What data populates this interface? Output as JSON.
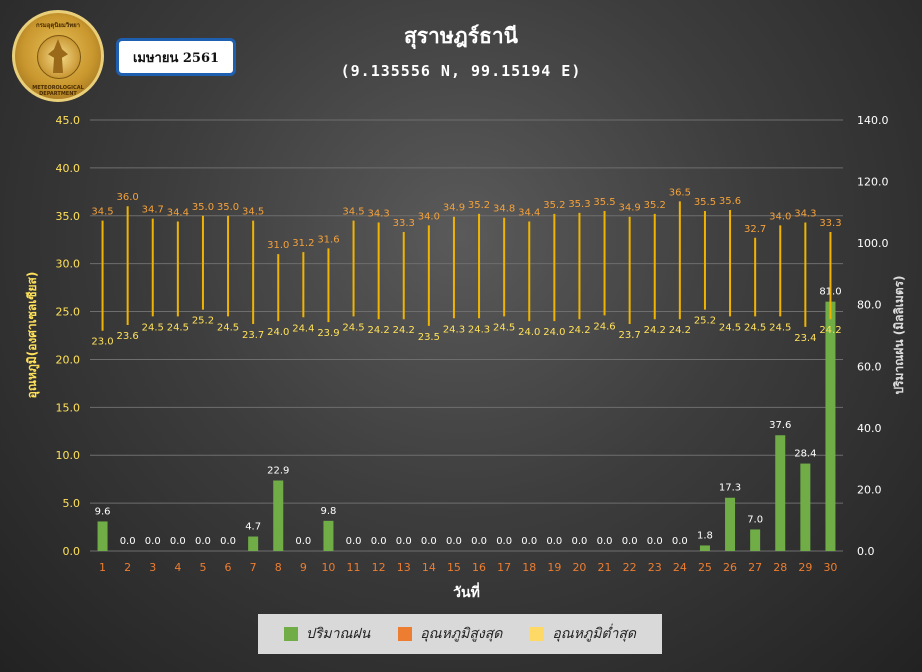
{
  "header": {
    "month_label": "เมษายน 2561",
    "station": "สุราษฎร์ธานี",
    "coords": "(9.135556 N, 99.15194 E)",
    "logo_text_top": "กรมอุตุนิยมวิทยา",
    "logo_text_bottom": "METEOROLOGICAL DEPARTMENT"
  },
  "colors": {
    "rain": "#70ad47",
    "tmax": "#ed7d31",
    "tmin": "#ffd966",
    "tmax_label": "#f4a13a",
    "tmin_label": "#ffe15a",
    "rain_label": "#ffffff",
    "left_axis": "#ffe15a",
    "right_axis": "#ffffff",
    "day_labels": "#ed7d31",
    "grid": "#6e6e6e"
  },
  "chart_data": {
    "type": "bar+range",
    "xlabel": "วันที่",
    "ylabel_left": "อุณหภูมิ(องศาเซลเซียส)",
    "ylabel_right": "ปริมาณฝน (มิลลิเมตร)",
    "ylim_left": [
      0,
      45
    ],
    "yticks_left": [
      "0.0",
      "5.0",
      "10.0",
      "15.0",
      "20.0",
      "25.0",
      "30.0",
      "35.0",
      "40.0",
      "45.0"
    ],
    "ylim_right": [
      0,
      140
    ],
    "yticks_right": [
      "0.0",
      "20.0",
      "40.0",
      "60.0",
      "80.0",
      "100.0",
      "120.0",
      "140.0"
    ],
    "days": [
      "1",
      "2",
      "3",
      "4",
      "5",
      "6",
      "7",
      "8",
      "9",
      "10",
      "11",
      "12",
      "13",
      "14",
      "15",
      "16",
      "17",
      "18",
      "19",
      "20",
      "21",
      "22",
      "23",
      "24",
      "25",
      "26",
      "27",
      "28",
      "29",
      "30"
    ],
    "series": [
      {
        "name": "ปริมาณฝน",
        "axis": "right",
        "values": [
          9.6,
          0.0,
          0.0,
          0.0,
          0.0,
          0.0,
          4.7,
          22.9,
          0.0,
          9.8,
          0.0,
          0.0,
          0.0,
          0.0,
          0.0,
          0.0,
          0.0,
          0.0,
          0.0,
          0.0,
          0.0,
          0.0,
          0.0,
          0.0,
          1.8,
          17.3,
          7.0,
          37.6,
          28.4,
          81.0
        ]
      },
      {
        "name": "อุณหภูมิสูงสุด",
        "axis": "left",
        "values": [
          34.5,
          36.0,
          34.7,
          34.4,
          35.0,
          35.0,
          34.5,
          31.0,
          31.2,
          31.6,
          34.5,
          34.3,
          33.3,
          34.0,
          34.9,
          35.2,
          34.8,
          34.4,
          35.2,
          35.3,
          35.5,
          34.9,
          35.2,
          36.5,
          35.5,
          35.6,
          32.7,
          34.0,
          34.3,
          33.3
        ]
      },
      {
        "name": "อุณหภูมิต่ำสุด",
        "axis": "left",
        "values": [
          23.0,
          23.6,
          24.5,
          24.5,
          25.2,
          24.5,
          23.7,
          24.0,
          24.4,
          23.9,
          24.5,
          24.2,
          24.2,
          23.5,
          24.3,
          24.3,
          24.5,
          24.0,
          24.0,
          24.2,
          24.6,
          23.7,
          24.2,
          24.2,
          25.2,
          24.5,
          24.5,
          24.5,
          23.4,
          24.2
        ]
      }
    ],
    "legend": [
      "ปริมาณฝน",
      "อุณหภูมิสูงสุด",
      "อุณหภูมิต่ำสุด"
    ],
    "legend_position": "bottom",
    "grid": true
  }
}
